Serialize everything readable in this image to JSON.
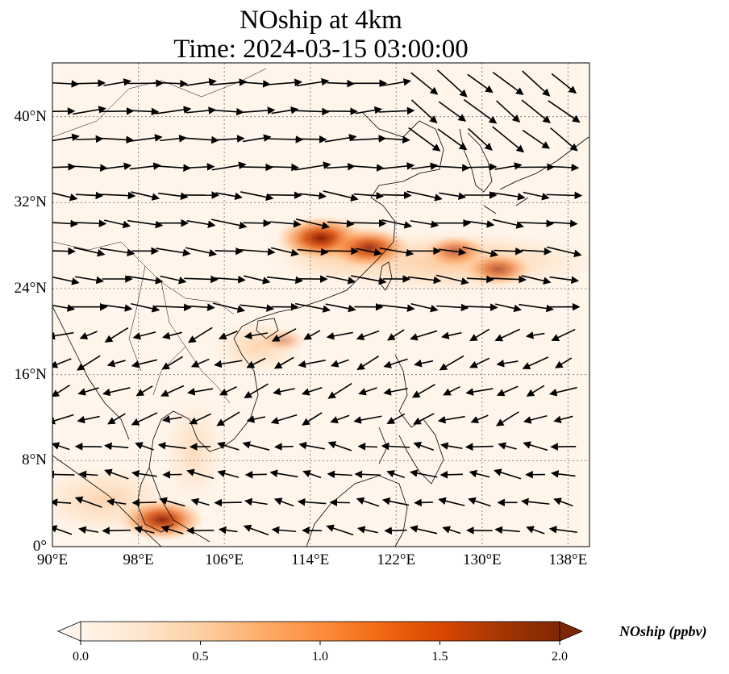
{
  "title_line1": "NOship at 4km",
  "title_line2": "Time: 2024-03-15 03:00:00",
  "lat_ticks": [
    "0°",
    "8°N",
    "16°N",
    "24°N",
    "32°N",
    "40°N"
  ],
  "lon_ticks": [
    "90°E",
    "98°E",
    "106°E",
    "114°E",
    "122°E",
    "130°E",
    "138°E"
  ],
  "colorbar": {
    "label": "NOship (ppbv)",
    "ticks": [
      "0.0",
      "0.5",
      "1.0",
      "1.5",
      "2.0"
    ],
    "range": [
      0.0,
      2.0
    ],
    "colormap": [
      "#fff5eb",
      "#fee6ce",
      "#fdd0a2",
      "#fdae6b",
      "#fd8d3c",
      "#f16913",
      "#d94801",
      "#a63603",
      "#7f2704"
    ]
  },
  "map": {
    "lon_range": [
      90,
      140
    ],
    "lat_range": [
      0,
      45
    ],
    "gridline_style": "dotted gray",
    "features": [
      "coastlines",
      "country borders",
      "wind vectors"
    ],
    "hotspots": [
      {
        "lon": 115.0,
        "lat": 28.7,
        "value": 1.8
      },
      {
        "lon": 119.5,
        "lat": 27.8,
        "value": 1.6
      },
      {
        "lon": 127.5,
        "lat": 27.5,
        "value": 1.1
      },
      {
        "lon": 131.5,
        "lat": 25.8,
        "value": 1.2
      },
      {
        "lon": 100.2,
        "lat": 2.5,
        "value": 1.7
      },
      {
        "lon": 111.5,
        "lat": 19.2,
        "value": 0.6
      }
    ]
  }
}
